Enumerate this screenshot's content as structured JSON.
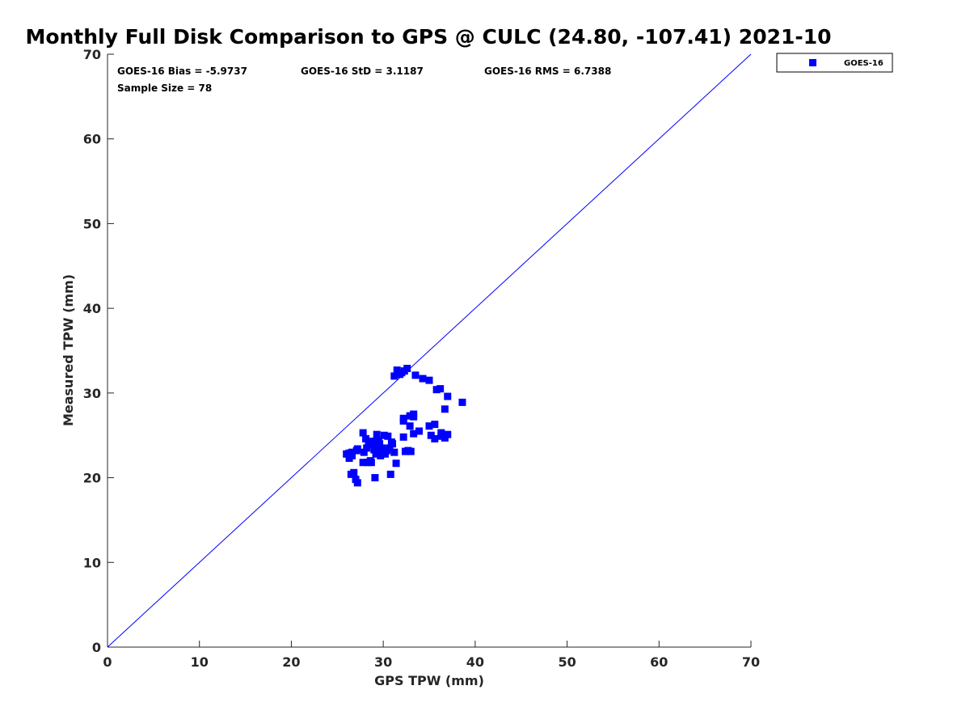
{
  "chart_data": {
    "type": "scatter",
    "title": "Monthly Full Disk Comparison to GPS @ CULC (24.80, -107.41) 2021-10",
    "xlabel": "GPS TPW (mm)",
    "ylabel": "Measured TPW (mm)",
    "xlim": [
      0,
      70
    ],
    "ylim": [
      0,
      70
    ],
    "xticks": [
      0,
      10,
      20,
      30,
      40,
      50,
      60,
      70
    ],
    "yticks": [
      0,
      10,
      20,
      30,
      40,
      50,
      60,
      70
    ],
    "grid": false,
    "legend_position": "outside-top-right",
    "reference_line": {
      "name": "1:1 line",
      "x": [
        0,
        70
      ],
      "y": [
        0,
        70
      ],
      "color": "#0000ff"
    },
    "stats": {
      "bias": "GOES-16 Bias = -5.9737",
      "std": "GOES-16 StD = 3.1187",
      "rms": "GOES-16 RMS = 6.7388",
      "sample": "Sample Size = 78"
    },
    "series": [
      {
        "name": "GOES-16",
        "color": "#0000ff",
        "marker": "square",
        "points": [
          [
            31.2,
            32.0
          ],
          [
            31.5,
            32.7
          ],
          [
            32.0,
            32.4
          ],
          [
            32.3,
            32.6
          ],
          [
            32.6,
            32.9
          ],
          [
            31.8,
            32.2
          ],
          [
            33.5,
            32.1
          ],
          [
            34.3,
            31.7
          ],
          [
            35.0,
            31.5
          ],
          [
            35.8,
            30.4
          ],
          [
            36.2,
            30.5
          ],
          [
            37.0,
            29.6
          ],
          [
            38.6,
            28.9
          ],
          [
            36.7,
            28.1
          ],
          [
            32.2,
            26.7
          ],
          [
            32.2,
            27.0
          ],
          [
            32.9,
            27.3
          ],
          [
            33.3,
            27.5
          ],
          [
            33.3,
            27.2
          ],
          [
            32.9,
            26.1
          ],
          [
            35.0,
            26.1
          ],
          [
            35.6,
            26.3
          ],
          [
            33.9,
            25.5
          ],
          [
            33.3,
            25.2
          ],
          [
            32.2,
            24.8
          ],
          [
            35.2,
            25.0
          ],
          [
            35.6,
            24.6
          ],
          [
            36.3,
            25.3
          ],
          [
            36.7,
            24.7
          ],
          [
            37.0,
            25.1
          ],
          [
            36.3,
            24.9
          ],
          [
            32.4,
            23.1
          ],
          [
            32.7,
            23.2
          ],
          [
            33.0,
            23.1
          ],
          [
            27.8,
            25.3
          ],
          [
            28.1,
            24.6
          ],
          [
            28.4,
            24.0
          ],
          [
            28.2,
            23.5
          ],
          [
            28.5,
            24.2
          ],
          [
            28.9,
            24.3
          ],
          [
            29.3,
            25.1
          ],
          [
            29.4,
            24.3
          ],
          [
            29.6,
            24.0
          ],
          [
            30.1,
            25.0
          ],
          [
            30.5,
            24.9
          ],
          [
            30.9,
            24.2
          ],
          [
            29.0,
            23.3
          ],
          [
            29.4,
            23.6
          ],
          [
            29.9,
            23.5
          ],
          [
            30.4,
            23.2
          ],
          [
            30.7,
            23.5
          ],
          [
            31.2,
            23.0
          ],
          [
            29.2,
            22.8
          ],
          [
            29.7,
            22.6
          ],
          [
            30.2,
            22.8
          ],
          [
            28.6,
            22.0
          ],
          [
            28.3,
            21.8
          ],
          [
            27.8,
            21.8
          ],
          [
            27.9,
            23.0
          ],
          [
            27.2,
            23.4
          ],
          [
            27.1,
            23.2
          ],
          [
            26.6,
            23.0
          ],
          [
            26.3,
            22.9
          ],
          [
            26.0,
            22.8
          ],
          [
            26.3,
            22.3
          ],
          [
            26.6,
            22.6
          ],
          [
            26.5,
            20.4
          ],
          [
            26.8,
            20.6
          ],
          [
            27.0,
            19.8
          ],
          [
            27.2,
            19.4
          ],
          [
            29.1,
            20.0
          ],
          [
            30.8,
            20.4
          ],
          [
            31.4,
            21.7
          ],
          [
            28.7,
            21.8
          ],
          [
            30.0,
            23.0
          ],
          [
            31.0,
            24.0
          ],
          [
            29.5,
            24.4
          ],
          [
            28.8,
            23.9
          ]
        ]
      }
    ]
  }
}
